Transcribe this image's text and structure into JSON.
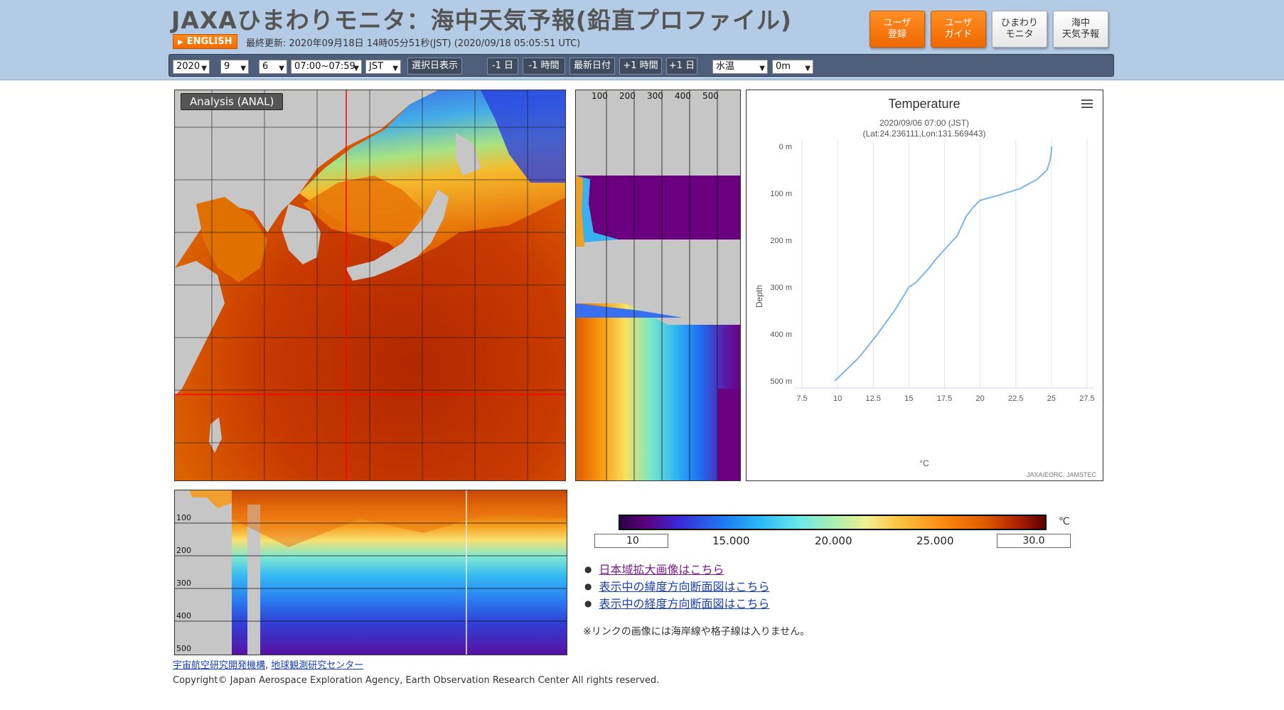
{
  "header": {
    "title": "JAXAひまわりモニタ：海中天気予報(鉛直プロファイル)",
    "english_label": "ENGLISH",
    "last_updated": "最終更新: 2020年09月18日 14時05分51秒(JST) (2020/09/18 05:05:51 UTC)",
    "buttons": [
      {
        "line1": "ユーザ",
        "line2": "登録",
        "style": "orange"
      },
      {
        "line1": "ユーザ",
        "line2": "ガイド",
        "style": "orange"
      },
      {
        "line1": "ひまわり",
        "line2": "モニタ",
        "style": "white"
      },
      {
        "line1": "海中",
        "line2": "天気予報",
        "style": "white"
      }
    ]
  },
  "toolbar": {
    "year": "2020",
    "month": "9",
    "day": "6",
    "time": "07:00~07:59",
    "timezone": "JST",
    "select_date_label": "選択日表示",
    "minus_day": "-1 日",
    "minus_hour": "-1 時間",
    "latest": "最新日付",
    "plus_hour": "+1 時間",
    "plus_day": "+1 日",
    "variable": "水温",
    "depth": "0m"
  },
  "map": {
    "label": "Analysis (ANAL)"
  },
  "vertical_profile": {
    "top_ticks": [
      "100",
      "200",
      "300",
      "400",
      "500"
    ]
  },
  "section": {
    "depth_ticks": [
      "100",
      "200",
      "300",
      "400",
      "500"
    ]
  },
  "chart_data": {
    "type": "line",
    "title": "Temperature",
    "subtitle": "2020/09/06 07:00 (JST)",
    "subtitle2": "(Lat:24.236111,Lon:131.569443)",
    "xlabel": "°C",
    "ylabel": "Depth",
    "xlim": [
      7.5,
      27.5
    ],
    "ylim": [
      0,
      500
    ],
    "y_reversed": true,
    "x_ticks": [
      "7.5",
      "10",
      "12.5",
      "15",
      "17.5",
      "20",
      "22.5",
      "25",
      "27.5"
    ],
    "y_ticks": [
      "0 m",
      "100 m",
      "200 m",
      "300 m",
      "400 m",
      "500 m"
    ],
    "credit": "JAXA/EORC, JAMSTEC",
    "grid": true,
    "series": [
      {
        "color": "#7cb5ec",
        "x": [
          25.0,
          25.0,
          24.9,
          24.7,
          24.0,
          22.8,
          21.2,
          20.0,
          19.5,
          19.0,
          18.4,
          17.5,
          16.9,
          16.4,
          15.5,
          15.0,
          14.0,
          12.8,
          11.5,
          9.8
        ],
        "y": [
          0,
          10,
          30,
          50,
          70,
          90,
          105,
          115,
          130,
          150,
          190,
          220,
          240,
          260,
          290,
          300,
          350,
          400,
          450,
          500
        ]
      }
    ]
  },
  "colorbar": {
    "min": "10",
    "max": "30.0",
    "unit": "℃",
    "ticks": [
      "15.000",
      "20.000",
      "25.000"
    ]
  },
  "links": [
    {
      "text": "日本域拡大画像はこちら",
      "visited": true
    },
    {
      "text": "表示中の緯度方向断面図はこちら",
      "visited": false
    },
    {
      "text": "表示中の経度方向断面図はこちら",
      "visited": false
    }
  ],
  "note": "※リンクの画像には海岸線や格子線は入りません。",
  "footer": {
    "link1": "宇宙航空研究開発機構",
    "separator": ",",
    "link2": "地球観測研究センター",
    "copyright": "Copyright© Japan Aerospace Exploration Agency, Earth Observation Research Center All rights reserved."
  }
}
